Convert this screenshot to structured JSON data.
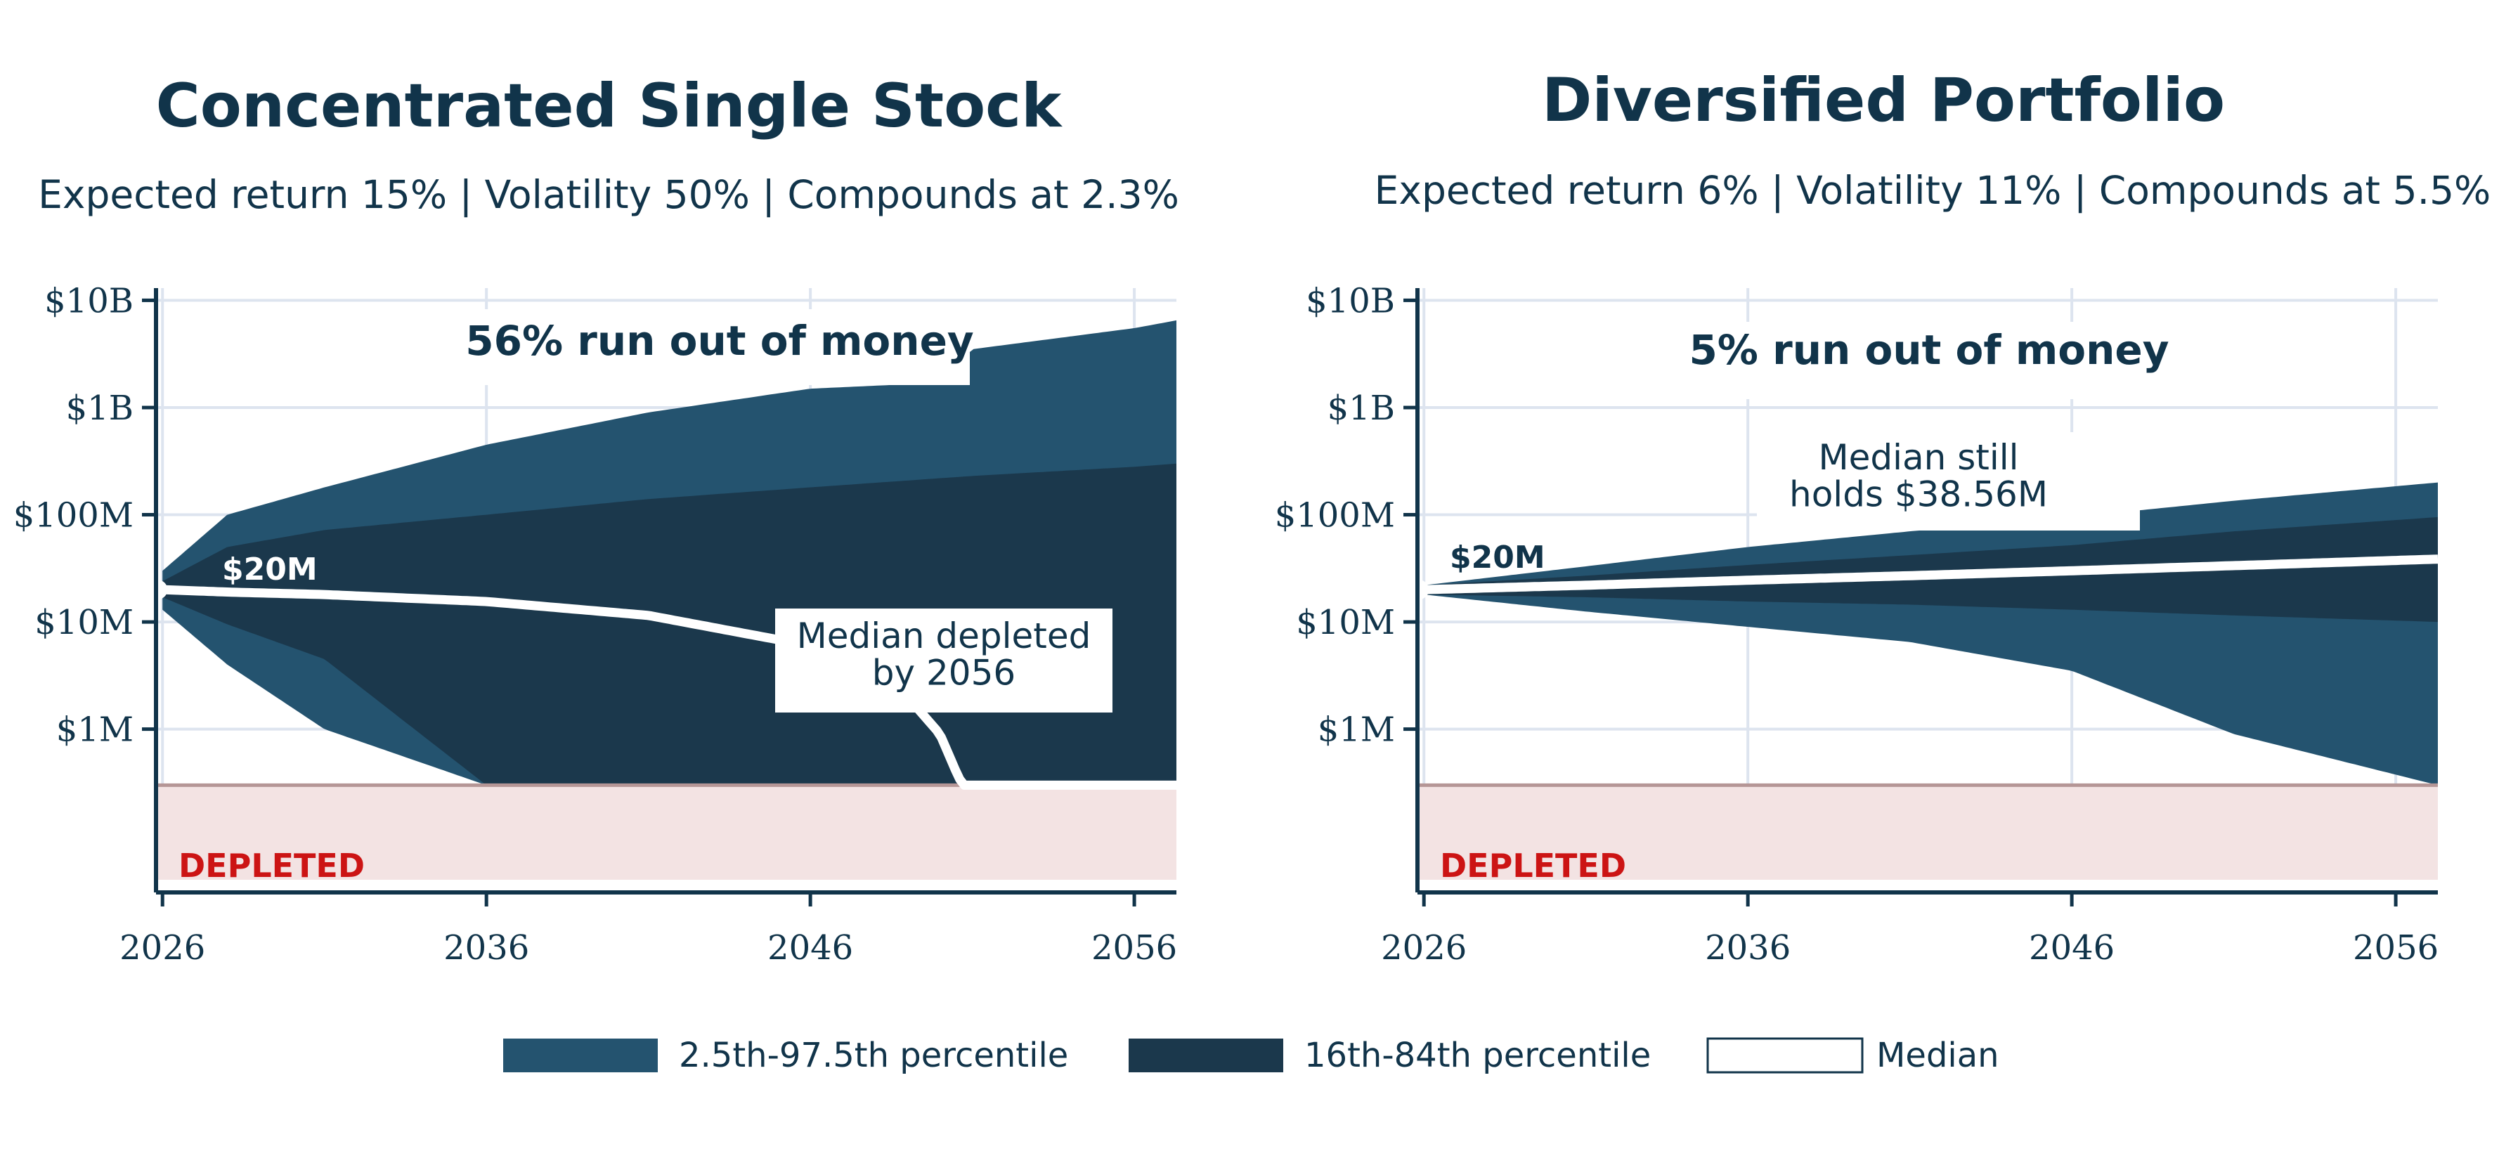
{
  "colors": {
    "outer_band": "#24536f",
    "inner_band": "#1b384c",
    "median": "#ffffff",
    "axis": "#11344a",
    "grid": "#dde4ef",
    "depleted_fill": "#f3e3e3",
    "depleted_line": "#b59696",
    "depleted_text": "#cc1414"
  },
  "legend": [
    {
      "key": "outer",
      "label": "2.5th-97.5th percentile"
    },
    {
      "key": "inner",
      "label": "16th-84th percentile"
    },
    {
      "key": "median",
      "label": "Median"
    }
  ],
  "chart_data": [
    {
      "type": "area",
      "title": "Concentrated Single Stock",
      "subtitle": "Expected return 15% | Volatility 50% | Compounds at 2.3%",
      "y_scale": "log",
      "x_ticks": [
        "2026",
        "2036",
        "2046",
        "2056"
      ],
      "x_tick_values": [
        2026,
        2036,
        2046,
        2056
      ],
      "xlim": [
        2025.8,
        2057.3
      ],
      "y_ticks": [
        "$10B",
        "$1B",
        "$100M",
        "$10M",
        "$1M"
      ],
      "y_tick_values": [
        10000000000,
        1000000000,
        100000000,
        10000000,
        1000000
      ],
      "ylim": [
        30000,
        13000000000
      ],
      "depleted_label": "DEPLETED",
      "depleted_threshold": 300000,
      "start_label": "$20M",
      "start_value": 20000000,
      "annotations": [
        {
          "lines": [
            "56% run out of money"
          ]
        },
        {
          "lines": [
            "Median depleted",
            "by 2056"
          ]
        }
      ],
      "series": [
        {
          "name": "2.5th-97.5th percentile",
          "band": "outer",
          "x": [
            2026,
            2028,
            2031,
            2036,
            2041,
            2046,
            2050,
            2051,
            2056,
            2057.3
          ],
          "upper": [
            30000000,
            100000000,
            180000000,
            450000000,
            900000000,
            1500000000,
            1700000000,
            3500000000,
            5500000000,
            6500000000
          ],
          "lower": [
            13000000,
            4000000,
            1000000,
            300000,
            300000,
            300000,
            300000,
            300000,
            300000,
            300000
          ]
        },
        {
          "name": "16th-84th percentile",
          "band": "inner",
          "x": [
            2026,
            2028,
            2031,
            2036,
            2041,
            2046,
            2051,
            2056,
            2057.3
          ],
          "upper": [
            24000000,
            50000000,
            72000000,
            100000000,
            140000000,
            180000000,
            230000000,
            280000000,
            300000000
          ],
          "lower": [
            17000000,
            9500000,
            4500000,
            300000,
            300000,
            300000,
            300000,
            300000,
            300000
          ]
        },
        {
          "name": "Median",
          "band": "median",
          "x": [
            2026,
            2028,
            2031,
            2036,
            2041,
            2046,
            2048,
            2049,
            2050,
            2050.5,
            2050.7,
            2057.3
          ],
          "y": [
            20000000,
            19000000,
            18000000,
            15500000,
            11500000,
            6000000,
            3300000,
            2000000,
            900000,
            400000,
            300000,
            300000
          ]
        }
      ]
    },
    {
      "type": "area",
      "title": "Diversified Portfolio",
      "subtitle": "Expected return 6% | Volatility 11% | Compounds at 5.5%",
      "y_scale": "log",
      "x_ticks": [
        "2026",
        "2036",
        "2046",
        "2056"
      ],
      "x_tick_values": [
        2026,
        2036,
        2046,
        2056
      ],
      "xlim": [
        2025.8,
        2057.3
      ],
      "y_ticks": [
        "$10B",
        "$1B",
        "$100M",
        "$10M",
        "$1M"
      ],
      "y_tick_values": [
        10000000000,
        1000000000,
        100000000,
        10000000,
        1000000
      ],
      "ylim": [
        30000,
        13000000000
      ],
      "depleted_label": "DEPLETED",
      "depleted_threshold": 300000,
      "start_label": "$20M",
      "start_value": 20000000,
      "annotations": [
        {
          "lines": [
            "5% run out of money"
          ]
        },
        {
          "lines": [
            "Median still",
            "holds $38.56M"
          ]
        }
      ],
      "series": [
        {
          "name": "2.5th-97.5th percentile",
          "band": "outer",
          "x": [
            2026,
            2031,
            2036,
            2041,
            2046,
            2051,
            2057.3
          ],
          "upper": [
            22000000,
            33000000,
            50000000,
            70000000,
            95000000,
            135000000,
            200000000
          ],
          "lower": [
            18000000,
            12500000,
            9000000,
            6500000,
            3500000,
            900000,
            300000
          ]
        },
        {
          "name": "16th-84th percentile",
          "band": "inner",
          "x": [
            2026,
            2031,
            2036,
            2041,
            2046,
            2051,
            2057.3
          ],
          "upper": [
            22000000,
            27000000,
            34000000,
            42000000,
            52000000,
            70000000,
            95000000
          ],
          "lower": [
            18000000,
            17000000,
            15500000,
            14500000,
            13000000,
            11500000,
            10000000
          ]
        },
        {
          "name": "Median",
          "band": "median",
          "x": [
            2026,
            2031,
            2036,
            2041,
            2046,
            2051,
            2057.3
          ],
          "y": [
            20000000,
            22000000,
            24500000,
            27000000,
            30000000,
            33500000,
            38560000
          ]
        }
      ]
    }
  ]
}
